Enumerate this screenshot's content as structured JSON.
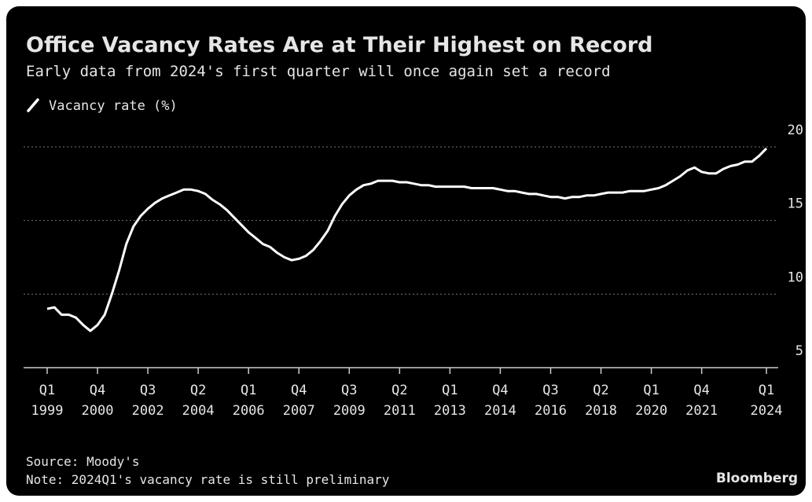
{
  "chart_data": {
    "type": "line",
    "title": "Office Vacancy Rates Are at Their Highest on Record",
    "subtitle": "Early data from 2024's first quarter will once again set a record",
    "source": "Source: Moody's",
    "note": "Note: 2024Q1's vacancy rate is still preliminary",
    "credit": "Bloomberg",
    "categories": [
      "Q1\n1999",
      null,
      null,
      null,
      null,
      null,
      null,
      "Q4\n2000",
      null,
      null,
      null,
      null,
      null,
      null,
      "Q3\n2002",
      null,
      null,
      null,
      null,
      null,
      null,
      "Q2\n2004",
      null,
      null,
      null,
      null,
      null,
      null,
      "Q1\n2006",
      null,
      null,
      null,
      null,
      null,
      null,
      "Q4\n2007",
      null,
      null,
      null,
      null,
      null,
      null,
      "Q3\n2009",
      null,
      null,
      null,
      null,
      null,
      null,
      "Q2\n2011",
      null,
      null,
      null,
      null,
      null,
      null,
      "Q1\n2013",
      null,
      null,
      null,
      null,
      null,
      null,
      "Q4\n2014",
      null,
      null,
      null,
      null,
      null,
      null,
      "Q3\n2016",
      null,
      null,
      null,
      null,
      null,
      null,
      "Q2\n2018",
      null,
      null,
      null,
      null,
      null,
      null,
      "Q1\n2020",
      null,
      null,
      null,
      null,
      null,
      null,
      "Q4\n2021",
      null,
      null,
      null,
      null,
      null,
      null,
      null,
      null,
      "Q1\n2024"
    ],
    "series": [
      {
        "name": "Vacancy rate (%)",
        "color": "#ffffff",
        "values": [
          9.0,
          9.1,
          8.6,
          8.6,
          8.4,
          7.9,
          7.5,
          7.9,
          8.6,
          10.0,
          11.6,
          13.4,
          14.6,
          15.3,
          15.8,
          16.2,
          16.5,
          16.7,
          16.9,
          17.1,
          17.1,
          17.0,
          16.8,
          16.4,
          16.1,
          15.7,
          15.2,
          14.7,
          14.2,
          13.8,
          13.4,
          13.2,
          12.8,
          12.5,
          12.3,
          12.4,
          12.6,
          13.0,
          13.6,
          14.3,
          15.3,
          16.1,
          16.7,
          17.1,
          17.4,
          17.5,
          17.7,
          17.7,
          17.7,
          17.6,
          17.6,
          17.5,
          17.4,
          17.4,
          17.3,
          17.3,
          17.3,
          17.3,
          17.3,
          17.2,
          17.2,
          17.2,
          17.2,
          17.1,
          17.0,
          17.0,
          16.9,
          16.8,
          16.8,
          16.7,
          16.6,
          16.6,
          16.5,
          16.6,
          16.6,
          16.7,
          16.7,
          16.8,
          16.9,
          16.9,
          16.9,
          17.0,
          17.0,
          17.0,
          17.1,
          17.2,
          17.4,
          17.7,
          18.0,
          18.4,
          18.6,
          18.3,
          18.2,
          18.2,
          18.5,
          18.7,
          18.8,
          19.0,
          19.0,
          19.4,
          19.9
        ]
      }
    ],
    "ylim": [
      5,
      20
    ],
    "yticks": [
      5,
      10,
      15,
      20
    ],
    "grid": true
  }
}
